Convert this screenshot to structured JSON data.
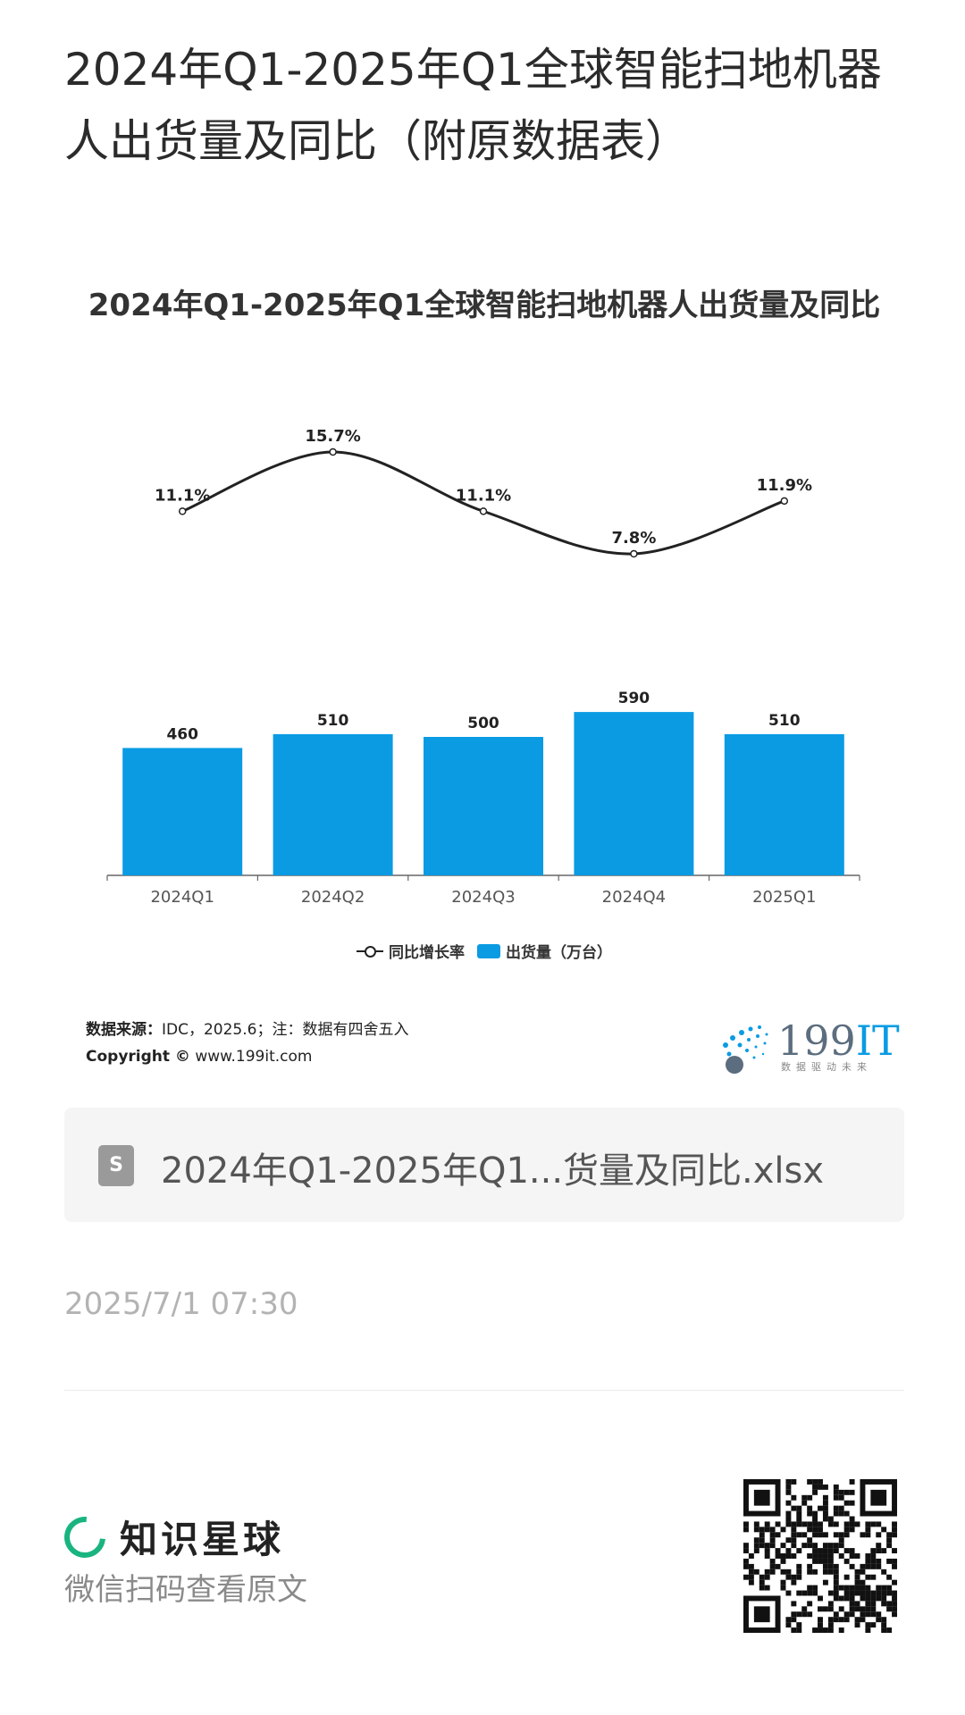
{
  "page": {
    "title": "2024年Q1-2025年Q1全球智能扫地机器人出货量及同比（附原数据表）"
  },
  "chart_data": {
    "type": "bar",
    "title": "2024年Q1-2025年Q1全球智能扫地机器人出货量及同比",
    "categories": [
      "2024Q1",
      "2024Q2",
      "2024Q3",
      "2024Q4",
      "2025Q1"
    ],
    "series": [
      {
        "name": "出货量（万台）",
        "type": "bar",
        "values": [
          460,
          510,
          500,
          590,
          510
        ],
        "labels": [
          "460",
          "510",
          "500",
          "590",
          "510"
        ]
      },
      {
        "name": "同比增长率",
        "type": "line",
        "values": [
          11.1,
          15.7,
          11.1,
          7.8,
          11.9
        ],
        "labels": [
          "11.1%",
          "15.7%",
          "11.1%",
          "7.8%",
          "11.9%"
        ]
      }
    ],
    "legend_position": "bottom",
    "grid": false,
    "colors": {
      "bar": "#0a9be3",
      "line": "#222222"
    }
  },
  "source": {
    "label": "数据来源：",
    "text": "IDC，2025.6；注：数据有四舍五入",
    "copyright_label": "Copyright ©",
    "copyright_text": "www.199it.com"
  },
  "brand": {
    "name_num": "199",
    "name_it": "IT",
    "tagline": "数据驱动未来"
  },
  "file": {
    "icon": "file-icon",
    "icon_letter": "S",
    "name": "2024年Q1-2025年Q1...货量及同比.xlsx"
  },
  "timestamp": "2025/7/1 07:30",
  "footer": {
    "app_name": "知识星球",
    "scan_hint": "微信扫码查看原文",
    "accent": "#19b47f"
  }
}
